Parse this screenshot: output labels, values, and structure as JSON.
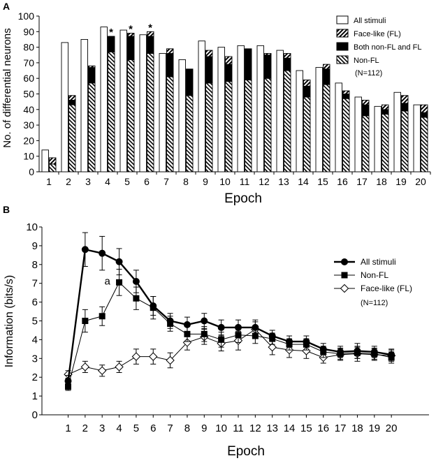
{
  "panel_a_label": "A",
  "panel_b_label": "B",
  "chart_data": [
    {
      "type": "bar",
      "panel": "A",
      "xlabel": "Epoch",
      "ylabel": "No. of differential neurons",
      "ylim": [
        0,
        100
      ],
      "yticks": [
        0,
        10,
        20,
        30,
        40,
        50,
        60,
        70,
        80,
        90,
        100
      ],
      "categories": [
        "1",
        "2",
        "3",
        "4",
        "5",
        "6",
        "7",
        "8",
        "9",
        "10",
        "11",
        "12",
        "13",
        "14",
        "15",
        "16",
        "17",
        "18",
        "19",
        "20"
      ],
      "all_stimuli": [
        14,
        83,
        85,
        93,
        91,
        88,
        76,
        72,
        84,
        80,
        81,
        81,
        78,
        65,
        67,
        57,
        48,
        42,
        51,
        43
      ],
      "stacked": {
        "non_fl": [
          5,
          43,
          57,
          77,
          72,
          76,
          61,
          49,
          57,
          58,
          59,
          60,
          65,
          48,
          56,
          47,
          36,
          37,
          39,
          35
        ],
        "both": [
          0,
          3,
          10,
          10,
          15,
          11,
          15,
          17,
          17,
          11,
          20,
          15,
          8,
          7,
          10,
          3,
          7,
          3,
          5,
          3
        ],
        "fl_only": [
          4,
          3,
          1,
          0,
          2,
          3,
          3,
          0,
          4,
          5,
          0,
          1,
          3,
          4,
          3,
          2,
          3,
          3,
          5,
          5
        ]
      },
      "asterisks": [
        "*",
        "*",
        "*"
      ],
      "asterisk_epochs": [
        4,
        5,
        6
      ],
      "legend": [
        "All stimuli",
        "Face-like (FL)",
        "Both non-FL and FL",
        "Non-FL",
        "(N=112)"
      ],
      "legend_position": "top-right"
    },
    {
      "type": "line",
      "panel": "B",
      "xlabel": "Epoch",
      "ylabel": "Information (bits/s)",
      "ylim": [
        0,
        10
      ],
      "yticks": [
        0,
        1,
        2,
        3,
        4,
        5,
        6,
        7,
        8,
        9,
        10
      ],
      "x": [
        1,
        2,
        3,
        4,
        5,
        6,
        7,
        8,
        9,
        10,
        11,
        12,
        13,
        14,
        15,
        16,
        17,
        18,
        19,
        20
      ],
      "series": [
        {
          "name": "All stimuli",
          "marker": "circle",
          "values": [
            1.8,
            8.8,
            8.6,
            8.15,
            7.1,
            5.8,
            5.0,
            4.8,
            5.0,
            4.65,
            4.65,
            4.65,
            4.2,
            3.9,
            3.9,
            3.5,
            3.35,
            3.4,
            3.35,
            3.2
          ],
          "errors": [
            0.3,
            0.9,
            0.9,
            0.7,
            0.6,
            0.5,
            0.4,
            0.4,
            0.4,
            0.4,
            0.4,
            0.4,
            0.3,
            0.3,
            0.3,
            0.3,
            0.3,
            0.4,
            0.3,
            0.3
          ]
        },
        {
          "name": "Non-FL",
          "marker": "square",
          "values": [
            1.5,
            5.0,
            5.25,
            7.05,
            6.2,
            5.7,
            4.85,
            4.3,
            4.3,
            4.0,
            4.25,
            4.2,
            4.05,
            3.75,
            3.75,
            3.35,
            3.25,
            3.3,
            3.25,
            3.05
          ],
          "errors": [
            0.2,
            0.6,
            0.5,
            0.7,
            0.6,
            0.6,
            0.4,
            0.4,
            0.4,
            0.4,
            0.4,
            0.4,
            0.3,
            0.3,
            0.3,
            0.3,
            0.3,
            0.3,
            0.3,
            0.3
          ]
        },
        {
          "name": "Face-like (FL)",
          "marker": "diamond",
          "values": [
            2.15,
            2.55,
            2.35,
            2.55,
            3.1,
            3.1,
            2.9,
            3.85,
            4.15,
            3.8,
            3.95,
            4.55,
            3.6,
            3.45,
            3.4,
            3.05,
            3.2,
            3.25,
            3.2,
            3.15
          ],
          "errors": [
            0.2,
            0.3,
            0.3,
            0.3,
            0.4,
            0.4,
            0.4,
            0.4,
            0.4,
            0.4,
            0.5,
            0.4,
            0.4,
            0.4,
            0.4,
            0.3,
            0.3,
            0.4,
            0.3,
            0.3
          ]
        }
      ],
      "annotation": "a",
      "annotation_epoch": 4,
      "legend": [
        "All stimuli",
        "Non-FL",
        "Face-like (FL)",
        "(N=112)"
      ],
      "legend_position": "right"
    }
  ]
}
